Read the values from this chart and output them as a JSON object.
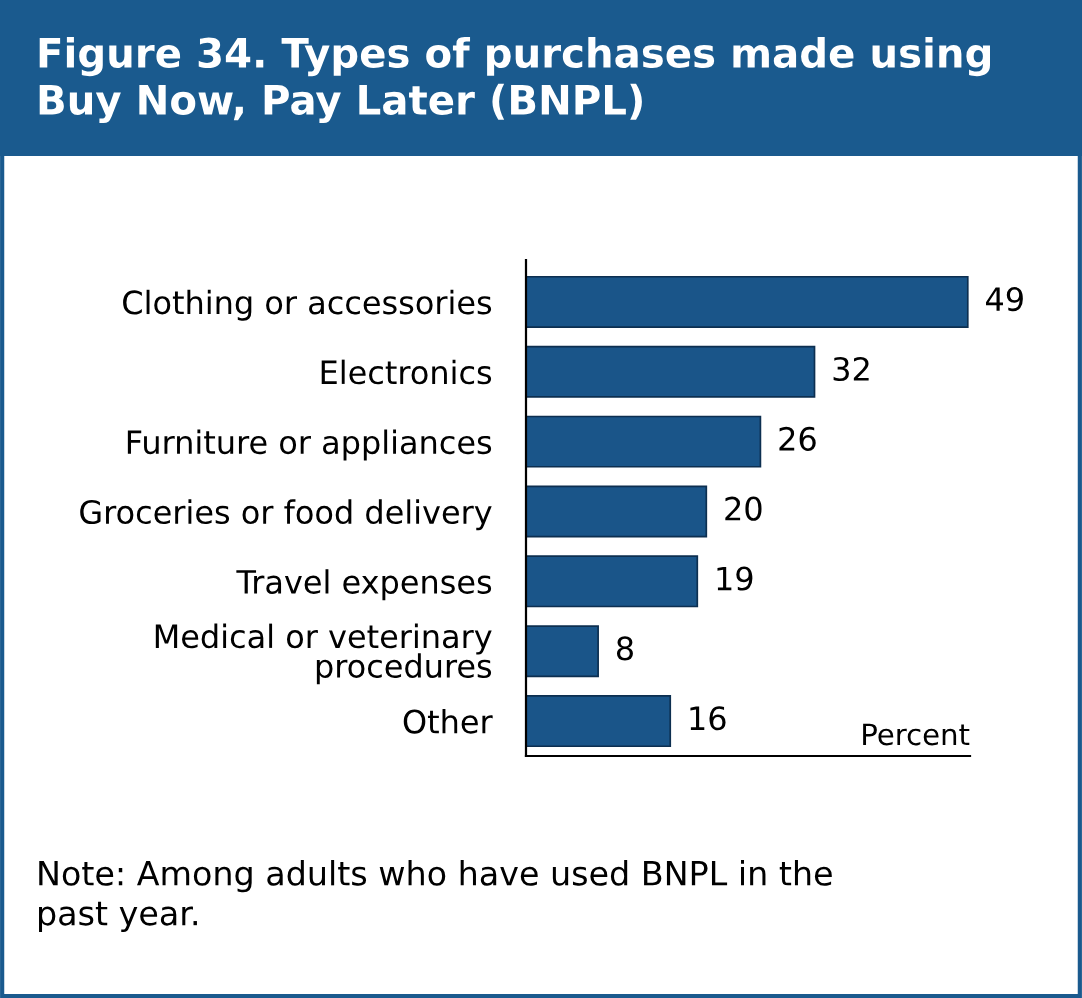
{
  "chart_data": {
    "type": "bar",
    "orientation": "horizontal",
    "title": "Figure 34. Types of purchases made using\nBuy Now, Pay Later (BNPL)",
    "xlabel": "Percent",
    "categories": [
      "Clothing or accessories",
      "Electronics",
      "Furniture or appliances",
      "Groceries or food delivery",
      "Travel expenses",
      "Medical or veterinary\nprocedures",
      "Other"
    ],
    "values": [
      49,
      32,
      26,
      20,
      19,
      8,
      16
    ],
    "color": "#1a5589",
    "data_labels": true,
    "grid": false,
    "legend": false,
    "annotations": [
      "Note: Among adults who have used BNPL in the\npast year."
    ]
  }
}
